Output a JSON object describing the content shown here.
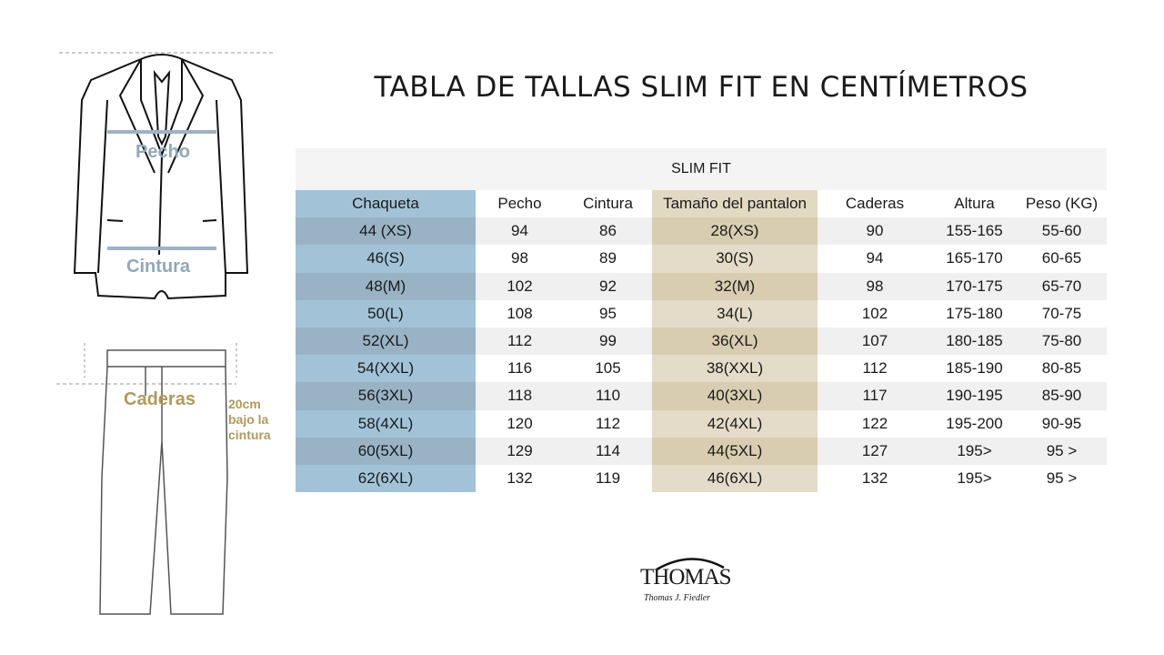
{
  "title": "TABLA DE TALLAS SLIM FIT EN CENTÍMETROS",
  "band": "SLIM FIT",
  "columns": [
    "Chaqueta",
    "Pecho",
    "Cintura",
    "Tamaño del pantalon",
    "Caderas",
    "Altura",
    "Peso (KG)"
  ],
  "rows": [
    [
      "44 (XS)",
      "94",
      "86",
      "28(XS)",
      "90",
      "155-165",
      "55-60"
    ],
    [
      "46(S)",
      "98",
      "89",
      "30(S)",
      "94",
      "165-170",
      "60-65"
    ],
    [
      "48(M)",
      "102",
      "92",
      "32(M)",
      "98",
      "170-175",
      "65-70"
    ],
    [
      "50(L)",
      "108",
      "95",
      "34(L)",
      "102",
      "175-180",
      "70-75"
    ],
    [
      "52(XL)",
      "112",
      "99",
      "36(XL)",
      "107",
      "180-185",
      "75-80"
    ],
    [
      "54(XXL)",
      "116",
      "105",
      "38(XXL)",
      "112",
      "185-190",
      "80-85"
    ],
    [
      "56(3XL)",
      "118",
      "110",
      "40(3XL)",
      "117",
      "190-195",
      "85-90"
    ],
    [
      "58(4XL)",
      "120",
      "112",
      "42(4XL)",
      "122",
      "195-200",
      "90-95"
    ],
    [
      "60(5XL)",
      "129",
      "114",
      "44(5XL)",
      "127",
      "195>",
      "95 >"
    ],
    [
      "62(6XL)",
      "132",
      "119",
      "46(6XL)",
      "132",
      "195>",
      "95 >"
    ]
  ],
  "diagram": {
    "chest": "Pecho",
    "waist": "Cintura",
    "hips": "Caderas",
    "hips_note": [
      "20cm",
      "bajo la",
      "cintura"
    ]
  },
  "logo": {
    "brand": "THOMAS",
    "sub": "Thomas J. Fiedler"
  },
  "colors": {
    "jacket_col": "#a2c3d7",
    "pants_col": "#e2d9c2",
    "chest_label": "#8fa9bc",
    "hips_label": "#b09a5a"
  }
}
